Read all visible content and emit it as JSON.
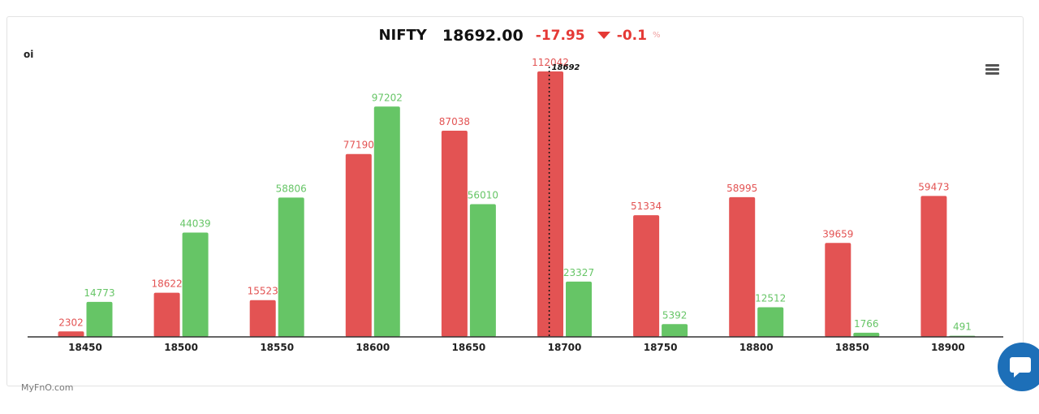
{
  "header": {
    "symbol": "NIFTY",
    "price": "18692.00",
    "change": "-17.95",
    "change_pct": "-0.1",
    "pct_sign": "%"
  },
  "oi_label": "oi",
  "footer": "MyFnO.com",
  "colors": {
    "call": "#e35353",
    "put": "#66c566",
    "negative": "#e53935"
  },
  "chart_data": {
    "type": "bar",
    "categories": [
      "18450",
      "18500",
      "18550",
      "18600",
      "18650",
      "18700",
      "18750",
      "18800",
      "18850",
      "18900"
    ],
    "series": [
      {
        "values": [
          2302,
          18622,
          15523,
          77190,
          87038,
          112042,
          51334,
          58995,
          39659,
          59473
        ],
        "color": "#e35353"
      },
      {
        "values": [
          14773,
          44039,
          58806,
          97202,
          56010,
          23327,
          5392,
          12512,
          1766,
          491
        ],
        "color": "#66c566"
      }
    ],
    "ylabel": "oi",
    "ylim": [
      0,
      112042
    ],
    "spot_line": {
      "value": 18692,
      "label": "18692"
    },
    "grid": false
  }
}
